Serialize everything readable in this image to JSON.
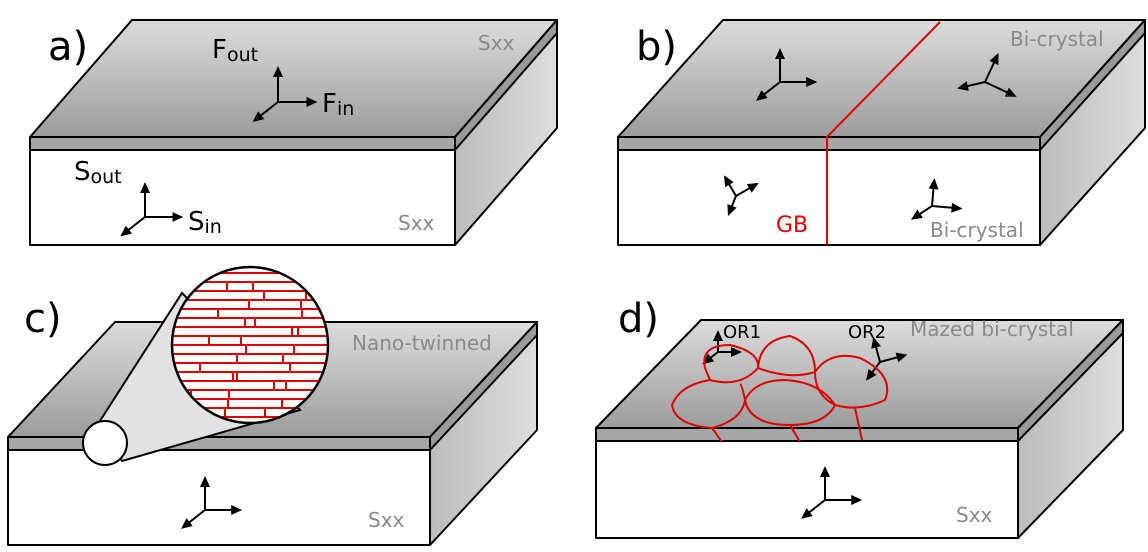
{
  "panels": [
    {
      "label": "a)",
      "force_out": {
        "main": "F",
        "sub": "out"
      },
      "force_in": {
        "main": "F",
        "sub": "in"
      },
      "stress_out": {
        "main": "S",
        "sub": "out"
      },
      "stress_in": {
        "main": "S",
        "sub": "in"
      },
      "top_label": "Sxx",
      "front_label": "Sxx"
    },
    {
      "label": "b)",
      "top_label": "Bi-crystal",
      "boundary_label": "GB",
      "front_label": "Bi-crystal"
    },
    {
      "label": "c)",
      "top_label": "Nano-twinned",
      "front_label": "Sxx"
    },
    {
      "label": "d)",
      "grain_1": "OR1",
      "grain_2": "OR2",
      "top_label": "Mazed bi-crystal",
      "front_label": "Sxx"
    }
  ]
}
